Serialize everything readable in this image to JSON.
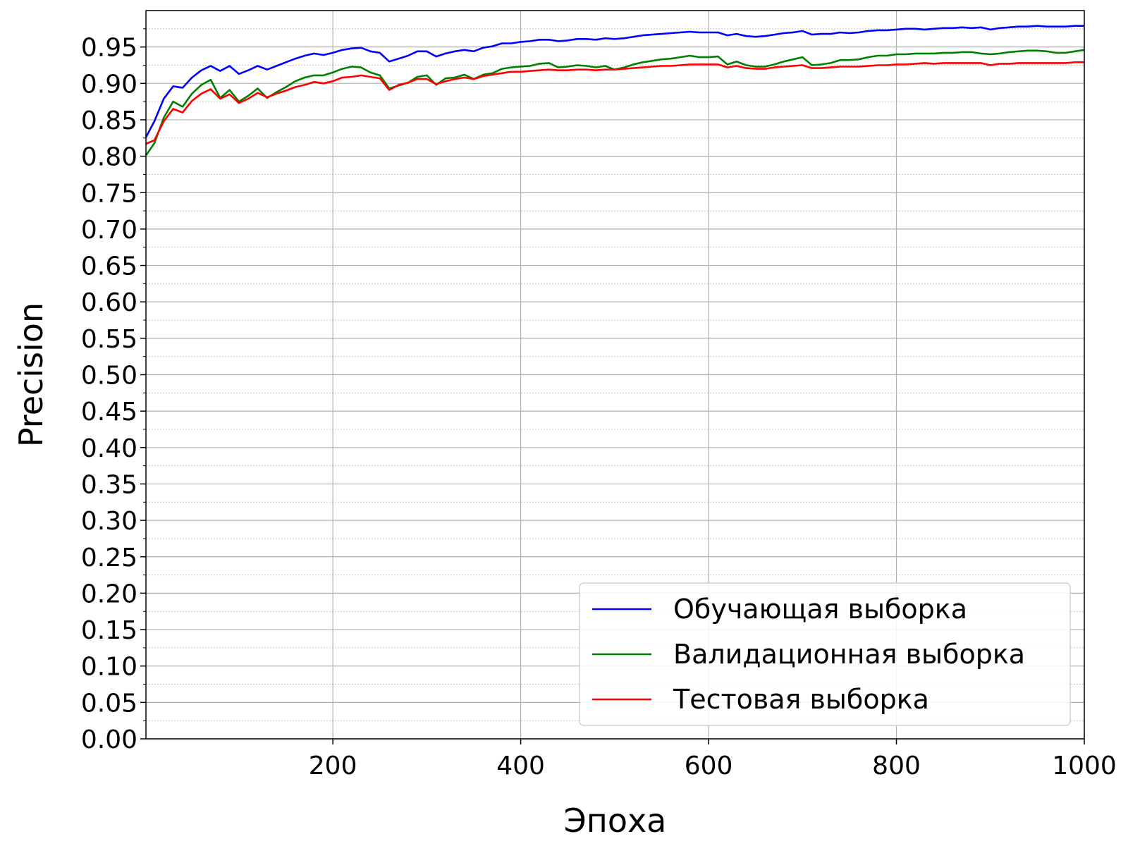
{
  "chart_data": {
    "type": "line",
    "xlabel": "Эпоха",
    "ylabel": "Precision",
    "xlim": [
      1,
      1000
    ],
    "ylim": [
      0.0,
      1.0
    ],
    "xticks": [
      "200",
      "400",
      "600",
      "800",
      "1000"
    ],
    "yticks": [
      "0.00",
      "0.05",
      "0.10",
      "0.15",
      "0.20",
      "0.25",
      "0.30",
      "0.35",
      "0.40",
      "0.45",
      "0.50",
      "0.55",
      "0.60",
      "0.65",
      "0.70",
      "0.75",
      "0.80",
      "0.85",
      "0.90",
      "0.95"
    ],
    "grid": true,
    "minor_grid": true,
    "legend_position": "lower-right",
    "x": [
      1,
      10,
      20,
      30,
      40,
      50,
      60,
      70,
      80,
      90,
      100,
      110,
      120,
      130,
      140,
      150,
      160,
      170,
      180,
      190,
      200,
      210,
      220,
      230,
      240,
      250,
      260,
      270,
      280,
      290,
      300,
      310,
      320,
      330,
      340,
      350,
      360,
      370,
      380,
      390,
      400,
      410,
      420,
      430,
      440,
      450,
      460,
      470,
      480,
      490,
      500,
      510,
      520,
      530,
      540,
      550,
      560,
      570,
      580,
      590,
      600,
      610,
      620,
      630,
      640,
      650,
      660,
      670,
      680,
      690,
      700,
      710,
      720,
      730,
      740,
      750,
      760,
      770,
      780,
      790,
      800,
      810,
      820,
      830,
      840,
      850,
      860,
      870,
      880,
      890,
      900,
      910,
      920,
      930,
      940,
      950,
      960,
      970,
      980,
      990,
      1000
    ],
    "series": [
      {
        "name": "Обучающая выборка",
        "color": "#0000ff",
        "values": [
          0.826,
          0.848,
          0.879,
          0.896,
          0.894,
          0.908,
          0.918,
          0.924,
          0.917,
          0.924,
          0.913,
          0.918,
          0.924,
          0.919,
          0.924,
          0.929,
          0.934,
          0.938,
          0.941,
          0.939,
          0.942,
          0.946,
          0.948,
          0.949,
          0.944,
          0.942,
          0.93,
          0.934,
          0.938,
          0.944,
          0.944,
          0.937,
          0.941,
          0.944,
          0.946,
          0.944,
          0.949,
          0.951,
          0.955,
          0.955,
          0.957,
          0.958,
          0.96,
          0.96,
          0.958,
          0.959,
          0.961,
          0.961,
          0.96,
          0.962,
          0.961,
          0.962,
          0.964,
          0.966,
          0.967,
          0.968,
          0.969,
          0.97,
          0.971,
          0.97,
          0.97,
          0.97,
          0.966,
          0.968,
          0.965,
          0.964,
          0.965,
          0.967,
          0.969,
          0.97,
          0.972,
          0.967,
          0.968,
          0.968,
          0.97,
          0.969,
          0.97,
          0.972,
          0.973,
          0.973,
          0.974,
          0.975,
          0.975,
          0.974,
          0.975,
          0.976,
          0.976,
          0.977,
          0.976,
          0.977,
          0.974,
          0.976,
          0.977,
          0.978,
          0.978,
          0.979,
          0.978,
          0.978,
          0.978,
          0.979,
          0.979
        ]
      },
      {
        "name": "Валидационная выборка",
        "color": "#008000",
        "values": [
          0.801,
          0.818,
          0.853,
          0.875,
          0.868,
          0.886,
          0.898,
          0.905,
          0.88,
          0.891,
          0.875,
          0.883,
          0.893,
          0.88,
          0.888,
          0.895,
          0.903,
          0.908,
          0.911,
          0.911,
          0.915,
          0.92,
          0.923,
          0.922,
          0.915,
          0.911,
          0.893,
          0.897,
          0.901,
          0.909,
          0.911,
          0.898,
          0.907,
          0.908,
          0.912,
          0.906,
          0.912,
          0.914,
          0.92,
          0.922,
          0.923,
          0.924,
          0.927,
          0.928,
          0.922,
          0.923,
          0.925,
          0.924,
          0.922,
          0.924,
          0.919,
          0.922,
          0.926,
          0.929,
          0.931,
          0.933,
          0.934,
          0.936,
          0.938,
          0.936,
          0.936,
          0.937,
          0.926,
          0.93,
          0.925,
          0.923,
          0.923,
          0.926,
          0.93,
          0.933,
          0.936,
          0.925,
          0.926,
          0.928,
          0.932,
          0.932,
          0.933,
          0.936,
          0.938,
          0.938,
          0.94,
          0.94,
          0.941,
          0.941,
          0.941,
          0.942,
          0.942,
          0.943,
          0.943,
          0.941,
          0.94,
          0.941,
          0.943,
          0.944,
          0.945,
          0.945,
          0.944,
          0.942,
          0.942,
          0.944,
          0.946
        ]
      },
      {
        "name": "Тестовая выборка",
        "color": "#ff0000",
        "values": [
          0.817,
          0.822,
          0.848,
          0.865,
          0.86,
          0.876,
          0.886,
          0.892,
          0.879,
          0.885,
          0.873,
          0.879,
          0.887,
          0.881,
          0.886,
          0.89,
          0.895,
          0.898,
          0.902,
          0.9,
          0.903,
          0.908,
          0.909,
          0.911,
          0.909,
          0.907,
          0.891,
          0.898,
          0.901,
          0.906,
          0.906,
          0.899,
          0.903,
          0.906,
          0.908,
          0.906,
          0.91,
          0.912,
          0.914,
          0.916,
          0.916,
          0.917,
          0.918,
          0.919,
          0.918,
          0.918,
          0.919,
          0.919,
          0.918,
          0.919,
          0.919,
          0.92,
          0.921,
          0.922,
          0.923,
          0.924,
          0.924,
          0.925,
          0.926,
          0.926,
          0.926,
          0.926,
          0.922,
          0.924,
          0.921,
          0.92,
          0.92,
          0.922,
          0.923,
          0.924,
          0.925,
          0.921,
          0.921,
          0.922,
          0.923,
          0.923,
          0.923,
          0.924,
          0.925,
          0.925,
          0.926,
          0.926,
          0.927,
          0.928,
          0.927,
          0.928,
          0.928,
          0.928,
          0.928,
          0.928,
          0.925,
          0.927,
          0.927,
          0.928,
          0.928,
          0.928,
          0.928,
          0.928,
          0.928,
          0.929,
          0.929
        ]
      }
    ]
  }
}
